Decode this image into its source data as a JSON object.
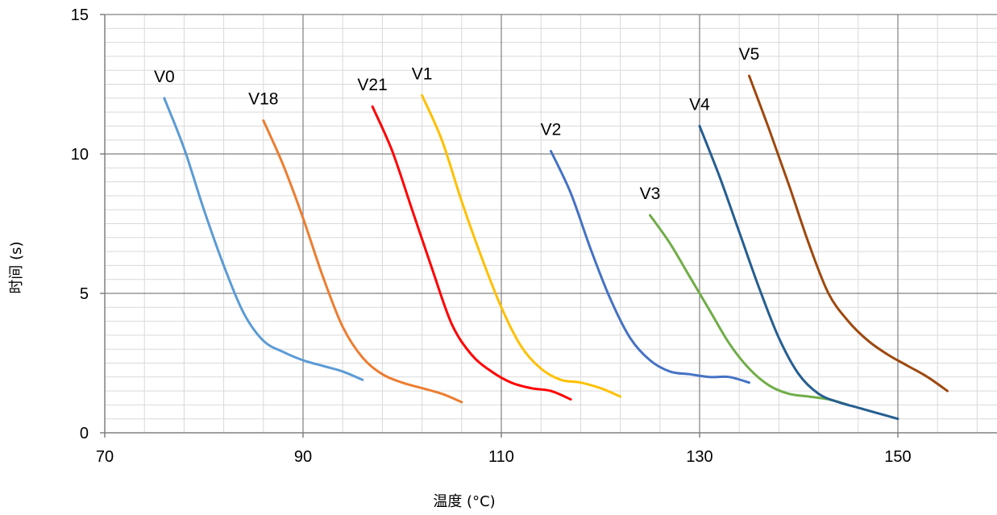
{
  "chart_data": {
    "type": "line",
    "title": "",
    "xlabel": "温度 (°C)",
    "ylabel": "时间 (s)",
    "xlim": [
      70,
      160
    ],
    "ylim": [
      0,
      15
    ],
    "x_ticks": [
      70,
      90,
      110,
      130,
      150
    ],
    "y_ticks": [
      0,
      5,
      10,
      15
    ],
    "x_minor_step": 4,
    "y_minor_step": 0.5,
    "grid": true,
    "legend": "none",
    "series": [
      {
        "name": "V0",
        "color": "#5B9BD5",
        "x": [
          76,
          78,
          80,
          82,
          84,
          86,
          88,
          90,
          92,
          94,
          96
        ],
        "y": [
          12.0,
          10.2,
          8.0,
          6.0,
          4.3,
          3.3,
          2.9,
          2.6,
          2.4,
          2.2,
          1.9
        ]
      },
      {
        "name": "V18",
        "color": "#ED7D31",
        "x": [
          86,
          88,
          90,
          92,
          94,
          96,
          98,
          100,
          102,
          104,
          106
        ],
        "y": [
          11.2,
          9.6,
          7.7,
          5.6,
          3.8,
          2.7,
          2.1,
          1.8,
          1.6,
          1.4,
          1.1
        ]
      },
      {
        "name": "V21",
        "color": "#FF0000",
        "x": [
          97,
          99,
          101,
          103,
          105,
          107,
          109,
          111,
          113,
          115,
          117
        ],
        "y": [
          11.7,
          10.1,
          8.0,
          5.9,
          3.9,
          2.8,
          2.2,
          1.8,
          1.6,
          1.5,
          1.2
        ]
      },
      {
        "name": "V1",
        "color": "#FFC000",
        "x": [
          102,
          104,
          106,
          108,
          110,
          112,
          114,
          116,
          118,
          120,
          122
        ],
        "y": [
          12.1,
          10.5,
          8.3,
          6.3,
          4.5,
          3.1,
          2.3,
          1.9,
          1.8,
          1.6,
          1.3
        ]
      },
      {
        "name": "V2",
        "color": "#4472C4",
        "x": [
          115,
          117,
          119,
          121,
          123,
          125,
          127,
          129,
          131,
          133,
          135
        ],
        "y": [
          10.1,
          8.6,
          6.6,
          4.8,
          3.4,
          2.6,
          2.2,
          2.1,
          2.0,
          2.0,
          1.8
        ]
      },
      {
        "name": "V3",
        "color": "#70AD47",
        "x": [
          125,
          127,
          129,
          131,
          133,
          135,
          137,
          139,
          141,
          143,
          145
        ],
        "y": [
          7.8,
          6.8,
          5.6,
          4.4,
          3.2,
          2.3,
          1.7,
          1.4,
          1.3,
          1.2,
          1.0
        ]
      },
      {
        "name": "V4",
        "color": "#255E91",
        "x": [
          130,
          132,
          134,
          136,
          138,
          140,
          142,
          144,
          146,
          148,
          150
        ],
        "y": [
          11.0,
          9.2,
          7.2,
          5.2,
          3.4,
          2.1,
          1.4,
          1.1,
          0.9,
          0.7,
          0.5
        ]
      },
      {
        "name": "V5",
        "color": "#9E480E",
        "x": [
          135,
          137,
          139,
          141,
          143,
          145,
          147,
          149,
          151,
          153,
          155
        ],
        "y": [
          12.8,
          10.9,
          8.9,
          6.8,
          5.0,
          4.0,
          3.3,
          2.8,
          2.4,
          2.0,
          1.5
        ]
      }
    ]
  }
}
